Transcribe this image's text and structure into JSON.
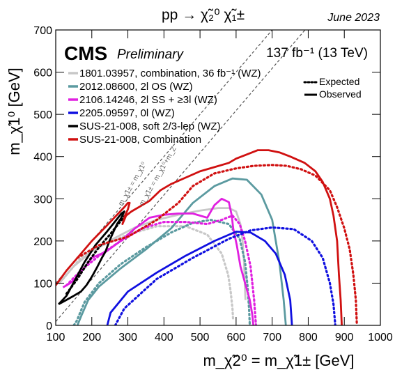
{
  "header": {
    "process": "pp → χ̃₂⁰ χ̃₁±",
    "date": "June 2023"
  },
  "labels": {
    "cms": "CMS",
    "preliminary": "Preliminary",
    "lumi": "137 fb⁻¹ (13 TeV)",
    "diag_mass1": "m_χ̃1± = m_χ̃1⁰",
    "diag_mass2": "m_χ̃1± = m_χ̃1⁰+m_Z"
  },
  "chart_data": {
    "type": "line",
    "xlabel": "m_χ̃2⁰ = m_χ̃1± [GeV]",
    "ylabel": "m_χ̃1⁰ [GeV]",
    "xlim": [
      100,
      1000
    ],
    "ylim": [
      0,
      700
    ],
    "xticks": [
      100,
      200,
      300,
      400,
      500,
      600,
      700,
      800,
      900,
      1000
    ],
    "yticks": [
      0,
      100,
      200,
      300,
      400,
      500,
      600,
      700
    ],
    "legend_position": "top-left",
    "style_legend": [
      {
        "label": "Expected",
        "style": "dotted"
      },
      {
        "label": "Observed",
        "style": "solid"
      }
    ],
    "diagonals": [
      {
        "label": "m = m",
        "offset": 0
      },
      {
        "label": "m = m + mZ",
        "offset": 91
      }
    ],
    "series": [
      {
        "name": "1801.03957, combination, 36 fb⁻¹ (WZ)",
        "color": "#c8c8c8",
        "observed": [
          [
            108,
            98
          ],
          [
            150,
            140
          ],
          [
            200,
            175
          ],
          [
            260,
            205
          ],
          [
            320,
            232
          ],
          [
            380,
            250
          ],
          [
            440,
            262
          ],
          [
            500,
            272
          ],
          [
            550,
            278
          ],
          [
            580,
            278
          ],
          [
            600,
            270
          ],
          [
            612,
            240
          ],
          [
            618,
            200
          ],
          [
            622,
            150
          ],
          [
            624,
            100
          ],
          [
            626,
            60
          ]
        ],
        "expected": [
          [
            120,
            110
          ],
          [
            170,
            160
          ],
          [
            230,
            190
          ],
          [
            300,
            215
          ],
          [
            380,
            235
          ],
          [
            460,
            235
          ],
          [
            520,
            215
          ],
          [
            560,
            170
          ],
          [
            578,
            120
          ],
          [
            585,
            80
          ],
          [
            590,
            40
          ],
          [
            592,
            10
          ]
        ]
      },
      {
        "name": "2012.08600, 2l OS (WZ)",
        "color": "#5b9aa0",
        "observed": [
          [
            160,
            0
          ],
          [
            172,
            25
          ],
          [
            190,
            60
          ],
          [
            220,
            92
          ],
          [
            280,
            135
          ],
          [
            350,
            180
          ],
          [
            420,
            230
          ],
          [
            480,
            290
          ],
          [
            540,
            330
          ],
          [
            590,
            348
          ],
          [
            630,
            345
          ],
          [
            670,
            310
          ],
          [
            700,
            250
          ],
          [
            720,
            150
          ],
          [
            732,
            60
          ],
          [
            738,
            0
          ]
        ],
        "expected": [
          [
            150,
            0
          ],
          [
            158,
            10
          ],
          [
            180,
            55
          ],
          [
            220,
            100
          ],
          [
            280,
            145
          ],
          [
            350,
            185
          ],
          [
            420,
            220
          ],
          [
            480,
            243
          ],
          [
            530,
            250
          ],
          [
            580,
            240
          ],
          [
            610,
            205
          ],
          [
            625,
            150
          ],
          [
            632,
            90
          ],
          [
            636,
            40
          ],
          [
            638,
            0
          ]
        ]
      },
      {
        "name": "2106.14246, 2l SS + ≥3l (WZ)",
        "color": "#e020e0",
        "observed": [
          [
            120,
            90
          ],
          [
            140,
            100
          ],
          [
            160,
            115
          ],
          [
            200,
            160
          ],
          [
            240,
            175
          ],
          [
            280,
            200
          ],
          [
            320,
            230
          ],
          [
            360,
            255
          ],
          [
            400,
            262
          ],
          [
            440,
            265
          ],
          [
            480,
            265
          ],
          [
            520,
            255
          ],
          [
            540,
            285
          ],
          [
            560,
            300
          ],
          [
            580,
            292
          ],
          [
            588,
            260
          ],
          [
            592,
            230
          ],
          [
            602,
            190
          ],
          [
            612,
            140
          ],
          [
            625,
            100
          ],
          [
            638,
            60
          ],
          [
            645,
            25
          ],
          [
            648,
            0
          ]
        ],
        "expected": [
          [
            130,
            95
          ],
          [
            170,
            130
          ],
          [
            220,
            165
          ],
          [
            280,
            200
          ],
          [
            340,
            230
          ],
          [
            400,
            245
          ],
          [
            460,
            245
          ],
          [
            520,
            240
          ],
          [
            560,
            250
          ],
          [
            590,
            260
          ],
          [
            610,
            240
          ],
          [
            625,
            200
          ],
          [
            640,
            140
          ],
          [
            650,
            60
          ],
          [
            655,
            0
          ]
        ]
      },
      {
        "name": "2205.09597, 0l (WZ)",
        "color": "#1010e0",
        "observed": [
          [
            243,
            0
          ],
          [
            252,
            30
          ],
          [
            300,
            80
          ],
          [
            380,
            125
          ],
          [
            460,
            165
          ],
          [
            540,
            200
          ],
          [
            600,
            222
          ],
          [
            640,
            220
          ],
          [
            680,
            200
          ],
          [
            710,
            170
          ],
          [
            735,
            120
          ],
          [
            750,
            60
          ],
          [
            755,
            0
          ]
        ],
        "expected": [
          [
            265,
            0
          ],
          [
            290,
            40
          ],
          [
            380,
            110
          ],
          [
            480,
            160
          ],
          [
            580,
            205
          ],
          [
            640,
            225
          ],
          [
            700,
            232
          ],
          [
            760,
            228
          ],
          [
            810,
            200
          ],
          [
            840,
            160
          ],
          [
            860,
            100
          ],
          [
            870,
            50
          ],
          [
            875,
            0
          ]
        ]
      },
      {
        "name": "SUS-21-008, soft 2/3-lep (WZ)",
        "color": "#000000",
        "observed": [
          [
            108,
            50
          ],
          [
            130,
            70
          ],
          [
            155,
            110
          ],
          [
            180,
            150
          ],
          [
            210,
            190
          ],
          [
            240,
            220
          ],
          [
            268,
            250
          ],
          [
            282,
            265
          ],
          [
            290,
            270
          ],
          [
            282,
            255
          ],
          [
            270,
            240
          ],
          [
            258,
            218
          ],
          [
            248,
            198
          ],
          [
            238,
            175
          ],
          [
            228,
            160
          ],
          [
            215,
            138
          ],
          [
            200,
            115
          ],
          [
            185,
            95
          ],
          [
            170,
            80
          ],
          [
            150,
            70
          ],
          [
            125,
            58
          ],
          [
            108,
            50
          ]
        ],
        "expected": [
          [
            130,
            75
          ],
          [
            160,
            110
          ],
          [
            190,
            150
          ],
          [
            220,
            185
          ],
          [
            250,
            215
          ],
          [
            278,
            245
          ],
          [
            292,
            260
          ]
        ]
      },
      {
        "name": "SUS-21-008, Combination",
        "color": "#d01010",
        "observed": [
          [
            100,
            95
          ],
          [
            130,
            130
          ],
          [
            160,
            160
          ],
          [
            200,
            200
          ],
          [
            240,
            235
          ],
          [
            270,
            262
          ],
          [
            290,
            280
          ],
          [
            300,
            290
          ],
          [
            305,
            290
          ],
          [
            300,
            275
          ],
          [
            292,
            260
          ],
          [
            285,
            240
          ],
          [
            295,
            260
          ],
          [
            310,
            270
          ],
          [
            330,
            280
          ],
          [
            360,
            295
          ],
          [
            390,
            320
          ],
          [
            420,
            335
          ],
          [
            460,
            350
          ],
          [
            500,
            365
          ],
          [
            540,
            375
          ],
          [
            580,
            385
          ],
          [
            600,
            395
          ],
          [
            630,
            405
          ],
          [
            660,
            415
          ],
          [
            690,
            415
          ],
          [
            720,
            410
          ],
          [
            750,
            400
          ],
          [
            790,
            385
          ],
          [
            820,
            365
          ],
          [
            840,
            340
          ],
          [
            860,
            300
          ],
          [
            870,
            260
          ],
          [
            880,
            200
          ],
          [
            885,
            120
          ],
          [
            890,
            60
          ],
          [
            893,
            0
          ]
        ],
        "expected": [
          [
            160,
            160
          ],
          [
            220,
            190
          ],
          [
            300,
            210
          ],
          [
            380,
            250
          ],
          [
            440,
            290
          ],
          [
            480,
            330
          ],
          [
            540,
            360
          ],
          [
            600,
            372
          ],
          [
            650,
            378
          ],
          [
            700,
            380
          ],
          [
            740,
            378
          ],
          [
            780,
            370
          ],
          [
            820,
            355
          ],
          [
            860,
            320
          ],
          [
            880,
            280
          ],
          [
            900,
            230
          ],
          [
            915,
            180
          ],
          [
            925,
            120
          ],
          [
            932,
            60
          ],
          [
            935,
            0
          ]
        ]
      }
    ]
  }
}
